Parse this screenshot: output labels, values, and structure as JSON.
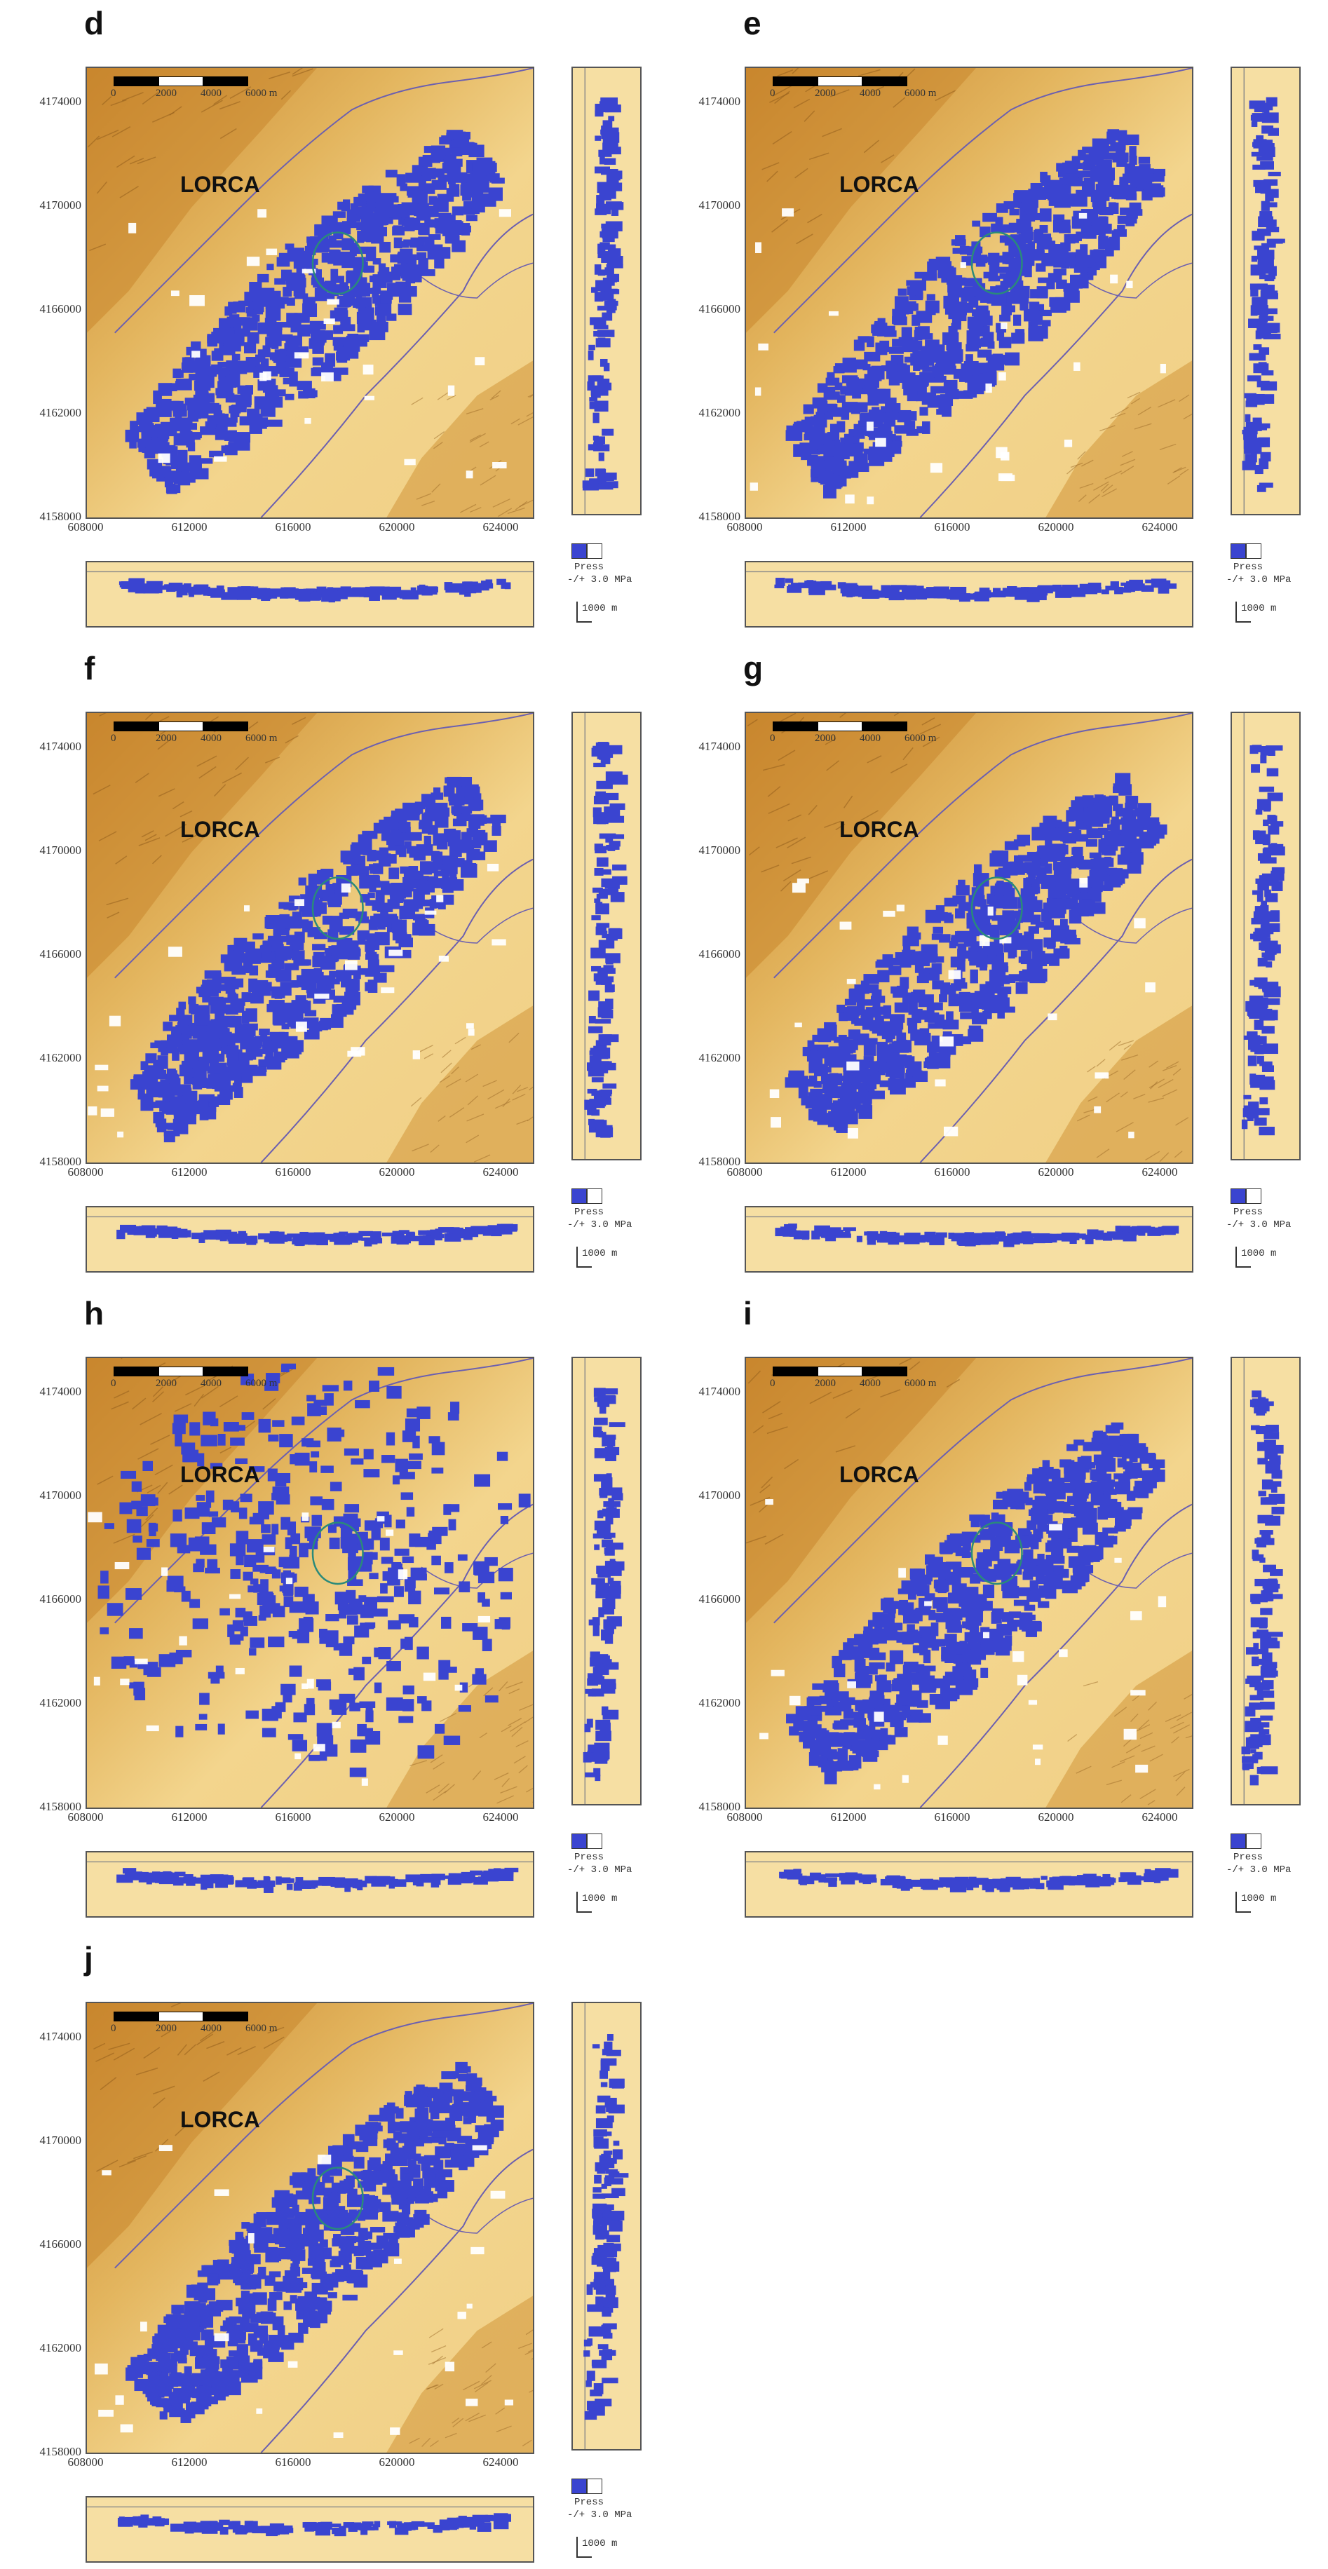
{
  "panels": [
    {
      "letter": "d",
      "place_label": "LORCA"
    },
    {
      "letter": "e",
      "place_label": "LORCA"
    },
    {
      "letter": "f",
      "place_label": "LORCA"
    },
    {
      "letter": "g",
      "place_label": "LORCA"
    },
    {
      "letter": "h",
      "place_label": "LORCA"
    },
    {
      "letter": "i",
      "place_label": "LORCA"
    },
    {
      "letter": "j",
      "place_label": "LORCA"
    }
  ],
  "axes": {
    "y_ticks": [
      "4174000",
      "4170000",
      "4166000",
      "4162000",
      "4158000"
    ],
    "x_ticks": [
      "608000",
      "612000",
      "616000",
      "620000",
      "624000"
    ]
  },
  "scale_bar": {
    "labels": [
      "0",
      "2000",
      "4000",
      "6000 m"
    ]
  },
  "legend": {
    "title": "Press",
    "range": "-/+ 3.0 MPa"
  },
  "depth_scale": {
    "label": "1000 m"
  },
  "colors": {
    "anomaly": "#3a44d0",
    "terrain_light": "#f3d58d",
    "terrain_dark": "#c9862e",
    "fault_line": "#6b5fb0",
    "cross_section_bg": "#f6dfa3"
  }
}
